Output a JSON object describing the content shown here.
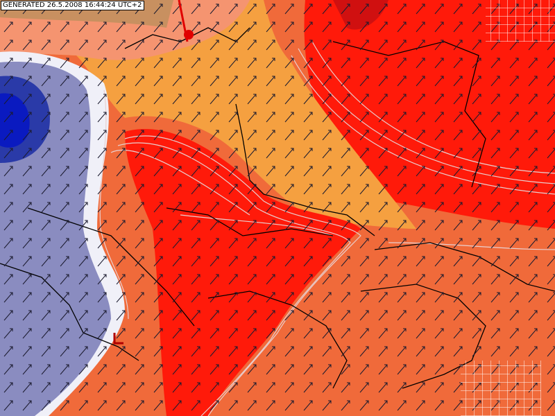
{
  "header": {
    "generated": "GENERATED 26.5.2008 16:44:24 UTC+2"
  }
}
